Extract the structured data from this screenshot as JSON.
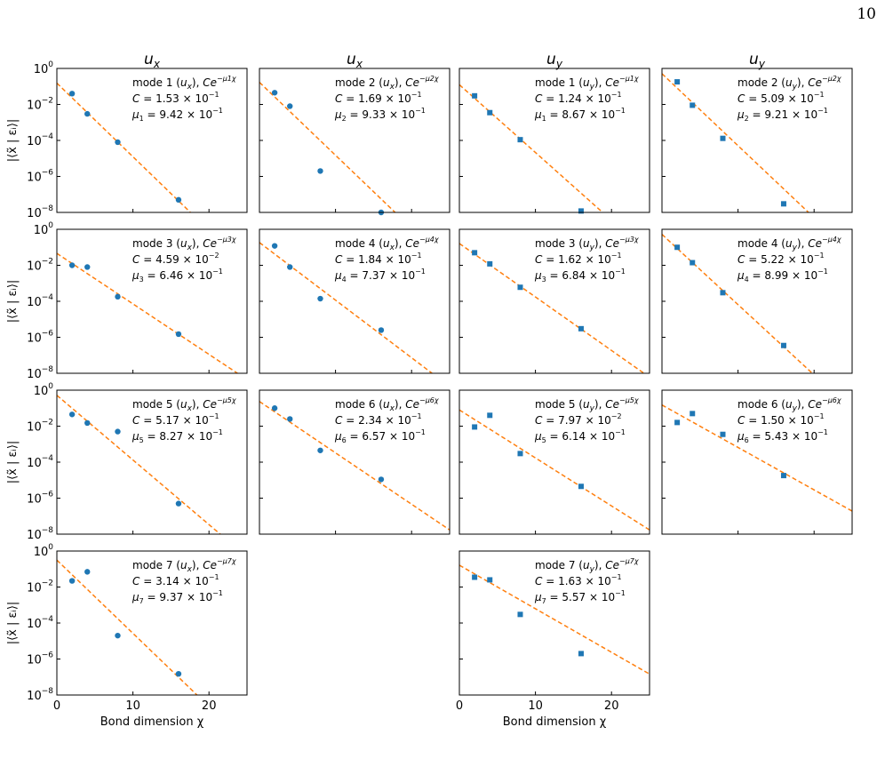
{
  "page_number": "10",
  "colors": {
    "points": "#1f77b4",
    "fit_line": "#ff7f0e",
    "axes": "#000000"
  },
  "axes_common": {
    "x_range": [
      0,
      25
    ],
    "x_ticks": [
      0,
      10,
      20
    ],
    "x_tick_labels": [
      "0",
      "10",
      "20"
    ],
    "y_scale": "log",
    "y_range_exp": [
      -8,
      0
    ],
    "y_tick_exps": [
      0,
      -2,
      -4,
      -6,
      -8
    ],
    "xlabel": "Bond dimension χ",
    "ylabel": "|⟨x̃ | εᵢ⟩|"
  },
  "column_titles": [
    {
      "base": "u",
      "sub": "x"
    },
    {
      "base": "u",
      "sub": "x"
    },
    {
      "base": "u",
      "sub": "y"
    },
    {
      "base": "u",
      "sub": "y"
    }
  ],
  "chart_data": [
    {
      "type": "scatter",
      "row": 0,
      "col": 0,
      "marker": "circle",
      "mode": 1,
      "component": "x",
      "C": "1.53",
      "C_exp": "-1",
      "mu": "9.42",
      "mu_exp": "-1",
      "C_value": 0.153,
      "mu_value": 0.942,
      "x": [
        2,
        4,
        8,
        16
      ],
      "y": [
        0.04,
        0.003,
        8e-05,
        5e-08
      ]
    },
    {
      "type": "scatter",
      "row": 0,
      "col": 1,
      "marker": "circle",
      "mode": 2,
      "component": "x",
      "C": "1.69",
      "C_exp": "-1",
      "mu": "9.33",
      "mu_exp": "-1",
      "C_value": 0.169,
      "mu_value": 0.933,
      "x": [
        2,
        4,
        8,
        16
      ],
      "y": [
        0.045,
        0.008,
        2e-06,
        1e-08
      ]
    },
    {
      "type": "scatter",
      "row": 0,
      "col": 2,
      "marker": "square",
      "mode": 1,
      "component": "y",
      "C": "1.24",
      "C_exp": "-1",
      "mu": "8.67",
      "mu_exp": "-1",
      "C_value": 0.124,
      "mu_value": 0.867,
      "x": [
        2,
        4,
        8,
        16
      ],
      "y": [
        0.03,
        0.0035,
        0.00011,
        1.2e-08
      ]
    },
    {
      "type": "scatter",
      "row": 0,
      "col": 3,
      "marker": "square",
      "mode": 2,
      "component": "y",
      "C": "5.09",
      "C_exp": "-1",
      "mu": "9.21",
      "mu_exp": "-1",
      "C_value": 0.509,
      "mu_value": 0.921,
      "x": [
        2,
        4,
        8,
        16
      ],
      "y": [
        0.18,
        0.009,
        0.00013,
        3e-08
      ]
    },
    {
      "type": "scatter",
      "row": 1,
      "col": 0,
      "marker": "circle",
      "mode": 3,
      "component": "x",
      "C": "4.59",
      "C_exp": "-2",
      "mu": "6.46",
      "mu_exp": "-1",
      "C_value": 0.0459,
      "mu_value": 0.646,
      "x": [
        2,
        4,
        8,
        16
      ],
      "y": [
        0.01,
        0.008,
        0.00018,
        1.5e-06
      ]
    },
    {
      "type": "scatter",
      "row": 1,
      "col": 1,
      "marker": "circle",
      "mode": 4,
      "component": "x",
      "C": "1.84",
      "C_exp": "-1",
      "mu": "7.37",
      "mu_exp": "-1",
      "C_value": 0.184,
      "mu_value": 0.737,
      "x": [
        2,
        4,
        8,
        16
      ],
      "y": [
        0.12,
        0.008,
        0.00014,
        2.5e-06
      ]
    },
    {
      "type": "scatter",
      "row": 1,
      "col": 2,
      "marker": "square",
      "mode": 3,
      "component": "y",
      "C": "1.62",
      "C_exp": "-1",
      "mu": "6.84",
      "mu_exp": "-1",
      "C_value": 0.162,
      "mu_value": 0.684,
      "x": [
        2,
        4,
        8,
        16
      ],
      "y": [
        0.05,
        0.012,
        0.0006,
        3e-06
      ]
    },
    {
      "type": "scatter",
      "row": 1,
      "col": 3,
      "marker": "square",
      "mode": 4,
      "component": "y",
      "C": "5.22",
      "C_exp": "-1",
      "mu": "8.99",
      "mu_exp": "-1",
      "C_value": 0.522,
      "mu_value": 0.899,
      "x": [
        2,
        4,
        8,
        16
      ],
      "y": [
        0.1,
        0.014,
        0.0003,
        3.5e-07
      ]
    },
    {
      "type": "scatter",
      "row": 2,
      "col": 0,
      "marker": "circle",
      "mode": 5,
      "component": "x",
      "C": "5.17",
      "C_exp": "-1",
      "mu": "8.27",
      "mu_exp": "-1",
      "C_value": 0.517,
      "mu_value": 0.827,
      "x": [
        2,
        4,
        8,
        16
      ],
      "y": [
        0.045,
        0.015,
        0.005,
        5e-07
      ]
    },
    {
      "type": "scatter",
      "row": 2,
      "col": 1,
      "marker": "circle",
      "mode": 6,
      "component": "x",
      "C": "2.34",
      "C_exp": "-1",
      "mu": "6.57",
      "mu_exp": "-1",
      "C_value": 0.234,
      "mu_value": 0.657,
      "x": [
        2,
        4,
        8,
        16
      ],
      "y": [
        0.1,
        0.025,
        0.00045,
        1.1e-05
      ]
    },
    {
      "type": "scatter",
      "row": 2,
      "col": 2,
      "marker": "square",
      "mode": 5,
      "component": "y",
      "C": "7.97",
      "C_exp": "-2",
      "mu": "6.14",
      "mu_exp": "-1",
      "C_value": 0.0797,
      "mu_value": 0.614,
      "x": [
        2,
        4,
        8,
        16
      ],
      "y": [
        0.009,
        0.04,
        0.0003,
        4.5e-06
      ]
    },
    {
      "type": "scatter",
      "row": 2,
      "col": 3,
      "marker": "square",
      "mode": 6,
      "component": "y",
      "C": "1.50",
      "C_exp": "-1",
      "mu": "5.43",
      "mu_exp": "-1",
      "C_value": 0.15,
      "mu_value": 0.543,
      "x": [
        2,
        4,
        8,
        16
      ],
      "y": [
        0.016,
        0.05,
        0.0035,
        1.8e-05
      ]
    },
    {
      "type": "scatter",
      "row": 3,
      "col": 0,
      "marker": "circle",
      "mode": 7,
      "component": "x",
      "C": "3.14",
      "C_exp": "-1",
      "mu": "9.37",
      "mu_exp": "-1",
      "C_value": 0.314,
      "mu_value": 0.937,
      "x": [
        2,
        4,
        8,
        16
      ],
      "y": [
        0.022,
        0.07,
        2e-05,
        1.5e-07
      ]
    },
    {
      "type": "scatter",
      "row": 3,
      "col": 2,
      "marker": "square",
      "mode": 7,
      "component": "y",
      "C": "1.63",
      "C_exp": "-1",
      "mu": "5.57",
      "mu_exp": "-1",
      "C_value": 0.163,
      "mu_value": 0.557,
      "x": [
        2,
        4,
        8,
        16
      ],
      "y": [
        0.035,
        0.025,
        0.0003,
        2e-06
      ]
    }
  ]
}
